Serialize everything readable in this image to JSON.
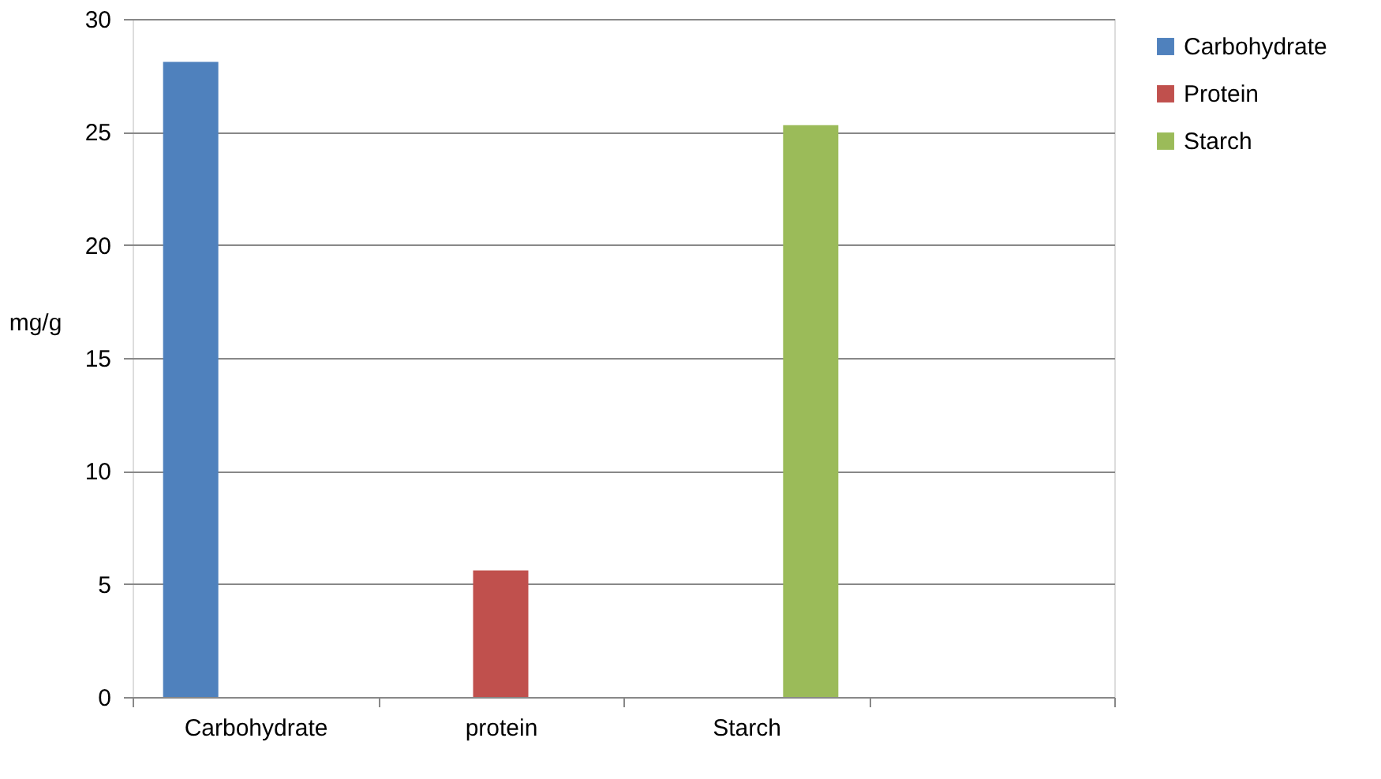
{
  "chart_data": {
    "type": "bar",
    "ylabel": "mg/g",
    "categories": [
      "Carbohydrate",
      "protein",
      "Starch",
      null
    ],
    "series": [
      {
        "name": "Carbohydrate",
        "color": "#4f81bd",
        "values": [
          28.1,
          null,
          null,
          null
        ]
      },
      {
        "name": "Protein",
        "color": "#c0504d",
        "values": [
          null,
          5.6,
          null,
          null
        ]
      },
      {
        "name": "Starch",
        "color": "#9bbb59",
        "values": [
          null,
          null,
          25.3,
          null
        ]
      }
    ],
    "ylim": [
      0,
      30
    ],
    "yticks": [
      0,
      5,
      10,
      15,
      20,
      25,
      30
    ],
    "grid": "y",
    "legend": "right"
  }
}
